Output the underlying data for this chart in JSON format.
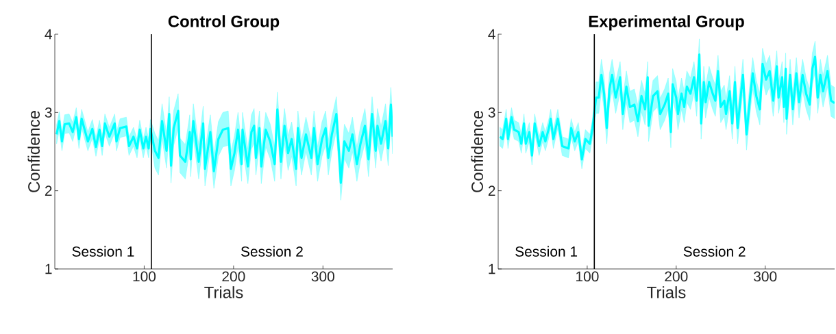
{
  "chart_data": [
    {
      "type": "line",
      "title": "Control Group",
      "xlabel": "Trials",
      "ylabel": "Confidence",
      "xlim": [
        0,
        378
      ],
      "ylim": [
        1,
        4
      ],
      "xticks": [
        100,
        200,
        300
      ],
      "yticks": [
        1,
        2,
        3,
        4
      ],
      "ref_lines": [
        {
          "axis": "x",
          "value": 108,
          "color": "#000000"
        }
      ],
      "annotations": [
        "Session 1",
        "Session 2"
      ],
      "series": [
        {
          "color": "#00ffff",
          "x": [
            2,
            5,
            8,
            11,
            16,
            20,
            24,
            27,
            30,
            37,
            42,
            46,
            50,
            53,
            56,
            61,
            67,
            69,
            73,
            80,
            83,
            88,
            92,
            95,
            99,
            102,
            105,
            107,
            112,
            116,
            120,
            125,
            128,
            130,
            133,
            138,
            140,
            146,
            151,
            152,
            155,
            161,
            166,
            168,
            174,
            178,
            183,
            188,
            194,
            197,
            201,
            205,
            209,
            210,
            216,
            220,
            223,
            225,
            229,
            231,
            236,
            241,
            246,
            249,
            253,
            257,
            261,
            265,
            270,
            272,
            276,
            281,
            287,
            290,
            294,
            299,
            303,
            306,
            310,
            315,
            319,
            320,
            324,
            329,
            333,
            338,
            342,
            347,
            351,
            355,
            359,
            361,
            365,
            370,
            373,
            376,
            378
          ],
          "values": [
            2.72,
            2.89,
            2.63,
            2.85,
            2.86,
            2.75,
            2.94,
            2.66,
            2.92,
            2.63,
            2.79,
            2.56,
            2.78,
            2.57,
            2.86,
            2.69,
            2.86,
            2.63,
            2.8,
            2.82,
            2.57,
            2.69,
            2.54,
            2.78,
            2.54,
            2.69,
            2.54,
            2.79,
            2.51,
            2.42,
            2.89,
            2.51,
            2.98,
            2.32,
            2.8,
            3.02,
            2.45,
            2.37,
            2.75,
            2.4,
            2.89,
            2.37,
            2.86,
            2.28,
            2.75,
            2.25,
            2.66,
            2.78,
            2.8,
            2.28,
            2.48,
            2.78,
            2.34,
            2.78,
            2.31,
            2.75,
            2.83,
            2.42,
            2.8,
            2.31,
            2.78,
            2.63,
            2.34,
            3.04,
            2.37,
            2.83,
            2.48,
            2.66,
            2.28,
            2.8,
            2.42,
            2.72,
            2.42,
            2.8,
            2.34,
            2.66,
            2.8,
            2.42,
            2.72,
            2.98,
            2.31,
            2.1,
            2.63,
            2.51,
            2.72,
            2.34,
            2.6,
            2.83,
            2.4,
            2.98,
            2.51,
            2.83,
            2.6,
            2.89,
            2.54,
            3.1,
            2.69
          ],
          "lower": [
            2.6,
            2.77,
            2.51,
            2.73,
            2.74,
            2.63,
            2.82,
            2.54,
            2.8,
            2.51,
            2.67,
            2.44,
            2.66,
            2.45,
            2.74,
            2.57,
            2.74,
            2.51,
            2.68,
            2.7,
            2.45,
            2.57,
            2.42,
            2.66,
            2.42,
            2.57,
            2.42,
            2.67,
            2.29,
            2.2,
            2.67,
            2.29,
            2.76,
            2.1,
            2.58,
            2.8,
            2.23,
            2.15,
            2.53,
            2.18,
            2.67,
            2.15,
            2.64,
            2.06,
            2.53,
            2.03,
            2.44,
            2.56,
            2.58,
            2.06,
            2.26,
            2.56,
            2.12,
            2.56,
            2.09,
            2.53,
            2.61,
            2.2,
            2.58,
            2.09,
            2.56,
            2.41,
            2.12,
            2.82,
            2.15,
            2.61,
            2.26,
            2.44,
            2.06,
            2.58,
            2.2,
            2.5,
            2.2,
            2.58,
            2.12,
            2.44,
            2.58,
            2.2,
            2.5,
            2.76,
            2.09,
            1.88,
            2.41,
            2.29,
            2.5,
            2.12,
            2.38,
            2.61,
            2.18,
            2.76,
            2.29,
            2.61,
            2.38,
            2.67,
            2.32,
            2.88,
            2.47
          ],
          "upper": [
            2.84,
            3.01,
            2.75,
            2.97,
            2.98,
            2.87,
            3.06,
            2.78,
            3.04,
            2.75,
            2.91,
            2.68,
            2.9,
            2.69,
            2.98,
            2.81,
            2.98,
            2.75,
            2.92,
            2.94,
            2.69,
            2.81,
            2.66,
            2.9,
            2.66,
            2.81,
            2.66,
            2.91,
            2.73,
            2.64,
            3.11,
            2.73,
            3.2,
            2.54,
            3.02,
            3.24,
            2.67,
            2.59,
            2.97,
            2.62,
            3.11,
            2.59,
            3.08,
            2.5,
            2.97,
            2.47,
            2.88,
            3.0,
            3.02,
            2.5,
            2.7,
            3.0,
            2.56,
            3.0,
            2.53,
            2.97,
            3.05,
            2.64,
            3.02,
            2.53,
            3.0,
            2.85,
            2.56,
            3.26,
            2.59,
            3.05,
            2.7,
            2.88,
            2.5,
            3.02,
            2.64,
            2.94,
            2.64,
            3.02,
            2.56,
            2.88,
            3.02,
            2.64,
            2.94,
            3.2,
            2.53,
            2.32,
            2.85,
            2.73,
            2.94,
            2.56,
            2.82,
            3.05,
            2.62,
            3.2,
            2.73,
            3.05,
            2.82,
            3.11,
            2.76,
            3.32,
            2.91
          ]
        }
      ]
    },
    {
      "type": "line",
      "title": "Experimental Group",
      "xlabel": "Trials",
      "ylabel": "Confidence",
      "xlim": [
        0,
        378
      ],
      "ylim": [
        1,
        4
      ],
      "xticks": [
        100,
        200,
        300
      ],
      "yticks": [
        1,
        2,
        3,
        4
      ],
      "ref_lines": [
        {
          "axis": "x",
          "value": 108,
          "color": "#000000"
        }
      ],
      "annotations": [
        "Session 1",
        "Session 2"
      ],
      "series": [
        {
          "color": "#00ffff",
          "x": [
            2,
            5,
            9,
            11,
            15,
            18,
            23,
            26,
            29,
            31,
            35,
            38,
            41,
            46,
            50,
            53,
            57,
            59,
            62,
            67,
            72,
            79,
            82,
            86,
            90,
            94,
            98,
            103,
            106,
            110,
            113,
            116,
            119,
            122,
            125,
            128,
            132,
            137,
            140,
            144,
            148,
            153,
            157,
            161,
            165,
            168,
            169,
            174,
            179,
            182,
            187,
            191,
            194,
            196,
            200,
            202,
            206,
            209,
            212,
            216,
            220,
            223,
            226,
            228,
            231,
            233,
            237,
            241,
            244,
            247,
            250,
            254,
            256,
            260,
            263,
            266,
            269,
            272,
            275,
            279,
            283,
            286,
            290,
            294,
            297,
            301,
            305,
            309,
            313,
            315,
            319,
            321,
            323,
            324,
            328,
            331,
            335,
            338,
            342,
            346,
            350,
            353,
            356,
            359,
            362,
            365,
            370,
            374,
            378
          ],
          "values": [
            2.69,
            2.66,
            2.92,
            2.66,
            2.94,
            2.78,
            2.75,
            2.6,
            2.86,
            2.6,
            2.75,
            2.45,
            2.86,
            2.57,
            2.75,
            2.63,
            2.8,
            2.92,
            2.66,
            2.92,
            2.57,
            2.54,
            2.8,
            2.63,
            2.75,
            2.4,
            2.66,
            2.6,
            2.8,
            3.19,
            3.19,
            3.48,
            3.24,
            2.8,
            3.3,
            3.48,
            3.19,
            3.45,
            2.98,
            3.33,
            3.07,
            3.1,
            2.89,
            3.21,
            3.04,
            3.45,
            2.83,
            3.21,
            3.27,
            2.98,
            3.1,
            3.24,
            2.75,
            3.36,
            3.19,
            2.98,
            3.24,
            3.07,
            3.33,
            3.24,
            3.45,
            3.15,
            3.74,
            2.86,
            3.39,
            3.13,
            3.39,
            3.24,
            3.15,
            3.53,
            3.07,
            3.15,
            2.98,
            3.27,
            2.86,
            3.39,
            2.8,
            3.15,
            3.48,
            2.72,
            3.19,
            3.5,
            3.21,
            3.04,
            3.62,
            3.42,
            3.53,
            3.15,
            3.59,
            3.19,
            3.45,
            3.07,
            3.56,
            2.92,
            3.48,
            3.04,
            3.5,
            3.13,
            3.48,
            3.24,
            3.1,
            3.56,
            3.71,
            3.19,
            3.48,
            3.27,
            3.53,
            3.15,
            3.12
          ],
          "lower": [
            2.57,
            2.54,
            2.8,
            2.54,
            2.82,
            2.66,
            2.63,
            2.48,
            2.74,
            2.48,
            2.63,
            2.33,
            2.74,
            2.45,
            2.63,
            2.51,
            2.68,
            2.8,
            2.54,
            2.8,
            2.45,
            2.42,
            2.68,
            2.51,
            2.63,
            2.28,
            2.54,
            2.48,
            2.68,
            2.99,
            2.99,
            3.28,
            3.04,
            2.6,
            3.1,
            3.28,
            2.99,
            3.25,
            2.78,
            3.13,
            2.87,
            2.9,
            2.69,
            3.01,
            2.84,
            3.25,
            2.63,
            3.01,
            3.07,
            2.78,
            2.9,
            3.04,
            2.55,
            3.16,
            2.99,
            2.78,
            3.04,
            2.87,
            3.13,
            3.04,
            3.25,
            2.95,
            3.54,
            2.66,
            3.19,
            2.93,
            3.19,
            3.04,
            2.95,
            3.33,
            2.87,
            2.95,
            2.78,
            3.07,
            2.66,
            3.19,
            2.6,
            2.95,
            3.28,
            2.52,
            2.99,
            3.3,
            3.01,
            2.84,
            3.42,
            3.22,
            3.33,
            2.95,
            3.39,
            2.99,
            3.25,
            2.87,
            3.36,
            2.72,
            3.28,
            2.84,
            3.3,
            2.93,
            3.28,
            3.04,
            2.9,
            3.36,
            3.51,
            2.99,
            3.28,
            3.07,
            3.33,
            2.95,
            2.92
          ],
          "upper": [
            2.81,
            2.78,
            3.04,
            2.78,
            3.06,
            2.9,
            2.87,
            2.72,
            2.98,
            2.72,
            2.87,
            2.57,
            2.98,
            2.69,
            2.87,
            2.75,
            2.92,
            3.04,
            2.78,
            3.04,
            2.69,
            2.66,
            2.92,
            2.75,
            2.87,
            2.52,
            2.78,
            2.72,
            2.92,
            3.39,
            3.39,
            3.68,
            3.44,
            3.0,
            3.5,
            3.68,
            3.39,
            3.65,
            3.18,
            3.53,
            3.27,
            3.3,
            3.09,
            3.41,
            3.24,
            3.65,
            3.03,
            3.41,
            3.47,
            3.18,
            3.3,
            3.44,
            2.95,
            3.56,
            3.39,
            3.18,
            3.44,
            3.27,
            3.53,
            3.44,
            3.65,
            3.35,
            3.94,
            3.06,
            3.59,
            3.33,
            3.59,
            3.44,
            3.35,
            3.73,
            3.27,
            3.35,
            3.18,
            3.47,
            3.06,
            3.59,
            3.0,
            3.35,
            3.68,
            2.92,
            3.39,
            3.7,
            3.41,
            3.24,
            3.82,
            3.62,
            3.73,
            3.35,
            3.79,
            3.39,
            3.65,
            3.27,
            3.76,
            3.12,
            3.68,
            3.24,
            3.7,
            3.33,
            3.68,
            3.44,
            3.3,
            3.76,
            3.91,
            3.39,
            3.68,
            3.47,
            3.73,
            3.35,
            3.32
          ]
        }
      ]
    }
  ]
}
